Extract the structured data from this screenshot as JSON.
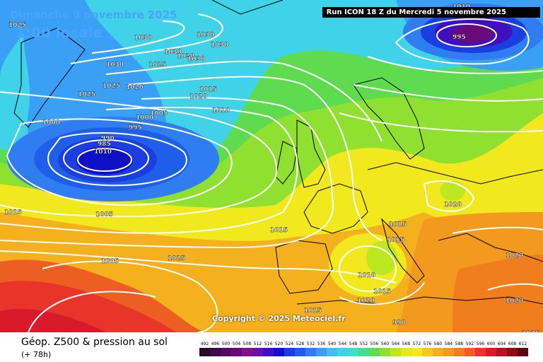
{
  "header": {
    "date": "Dimanche 9 novembre 2025",
    "local_time": "1:00 locale",
    "run": "Run ICON 18 Z du Mercredi 5 novembre 2025"
  },
  "copyright": "Copyright © 2025 Meteociel.fr",
  "footer": {
    "title": "Géop. Z500 & pression au sol",
    "subtitle": "(+ 78h)"
  },
  "colors": {
    "low_core": "#1010c8",
    "deep_blue": "#1a3ee0",
    "mid_blue": "#2f7df0",
    "cyan": "#3fd2e8",
    "green": "#6fdb3a",
    "yellow": "#f2e81e",
    "orange": "#f39a1e",
    "red": "#e8342a",
    "isobar": "#ffffff",
    "coast": "#000000"
  },
  "pressure_labels": [
    "1025",
    "1030",
    "1030",
    "1030",
    "1030",
    "1030",
    "1030",
    "1030",
    "1025",
    "1025",
    "1020",
    "1025",
    "1020",
    "1015",
    "1010",
    "1005",
    "1000",
    "1000",
    "995",
    "990",
    "985",
    "1010",
    "1005",
    "1015",
    "1015",
    "1015",
    "1015",
    "1020",
    "1025",
    "1005",
    "1010",
    "1015",
    "1020",
    "1015",
    "990",
    "995",
    "1010",
    "1020",
    "1020",
    "1025"
  ],
  "legend": {
    "values": [
      "492",
      "496",
      "500",
      "504",
      "508",
      "512",
      "516",
      "520",
      "524",
      "528",
      "532",
      "536",
      "540",
      "544",
      "548",
      "552",
      "556",
      "560",
      "564",
      "568",
      "572",
      "576",
      "580",
      "584",
      "588",
      "592",
      "596",
      "600",
      "604",
      "608",
      "612"
    ],
    "colors": [
      "#2a0a2a",
      "#3d0a45",
      "#520a60",
      "#6a0a7a",
      "#820f90",
      "#6a0fa8",
      "#4010c0",
      "#1010c8",
      "#1a3ee0",
      "#1f5ee8",
      "#2f7df0",
      "#3aa0f5",
      "#3fc0f0",
      "#3fd2e8",
      "#3fe0c8",
      "#40e090",
      "#5fdb50",
      "#8fe030",
      "#bde820",
      "#e2ea1e",
      "#f2e81e",
      "#f5c81e",
      "#f5b01e",
      "#f39a1e",
      "#f07d1e",
      "#ec5e22",
      "#e8342a",
      "#d81a2a",
      "#b8101e",
      "#900a14",
      "#600008"
    ]
  }
}
